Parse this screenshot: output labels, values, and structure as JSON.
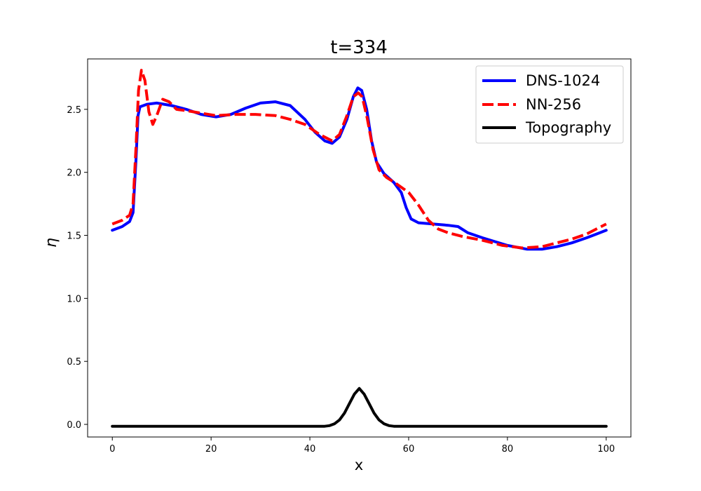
{
  "chart_data": {
    "type": "line",
    "title": "t=334",
    "xlabel": "x",
    "ylabel": "η",
    "xlim": [
      -5,
      105
    ],
    "ylim": [
      -0.1,
      2.9
    ],
    "xticks": [
      0,
      20,
      40,
      60,
      80,
      100
    ],
    "xtick_labels": [
      "0",
      "20",
      "40",
      "60",
      "80",
      "100"
    ],
    "yticks": [
      0.0,
      0.5,
      1.0,
      1.5,
      2.0,
      2.5
    ],
    "ytick_labels": [
      "0.0",
      "0.5",
      "1.0",
      "1.5",
      "2.0",
      "2.5"
    ],
    "grid": false,
    "legend_position": "top-right",
    "series": [
      {
        "name": "DNS-1024",
        "color": "#0000ff",
        "style": "solid",
        "points": [
          [
            0,
            1.54
          ],
          [
            2,
            1.57
          ],
          [
            3.5,
            1.61
          ],
          [
            4.2,
            1.68
          ],
          [
            4.8,
            2.1
          ],
          [
            5.2,
            2.45
          ],
          [
            5.6,
            2.52
          ],
          [
            7,
            2.54
          ],
          [
            9,
            2.55
          ],
          [
            12,
            2.53
          ],
          [
            15,
            2.5
          ],
          [
            18,
            2.46
          ],
          [
            21,
            2.44
          ],
          [
            24,
            2.46
          ],
          [
            27,
            2.51
          ],
          [
            30,
            2.55
          ],
          [
            33,
            2.56
          ],
          [
            36,
            2.53
          ],
          [
            39,
            2.42
          ],
          [
            41,
            2.32
          ],
          [
            43,
            2.25
          ],
          [
            44.5,
            2.23
          ],
          [
            46,
            2.28
          ],
          [
            47.5,
            2.42
          ],
          [
            48.8,
            2.6
          ],
          [
            49.7,
            2.67
          ],
          [
            50.5,
            2.65
          ],
          [
            51.5,
            2.5
          ],
          [
            52.5,
            2.25
          ],
          [
            53.5,
            2.08
          ],
          [
            55,
            1.99
          ],
          [
            57,
            1.92
          ],
          [
            58.5,
            1.84
          ],
          [
            59.5,
            1.72
          ],
          [
            60.5,
            1.63
          ],
          [
            62,
            1.6
          ],
          [
            65,
            1.59
          ],
          [
            68,
            1.58
          ],
          [
            70,
            1.57
          ],
          [
            72,
            1.52
          ],
          [
            75,
            1.48
          ],
          [
            80,
            1.42
          ],
          [
            84,
            1.39
          ],
          [
            87,
            1.39
          ],
          [
            90,
            1.41
          ],
          [
            93,
            1.44
          ],
          [
            96,
            1.48
          ],
          [
            98,
            1.51
          ],
          [
            100,
            1.54
          ]
        ]
      },
      {
        "name": "NN-256",
        "color": "#ff0000",
        "style": "dashed",
        "points": [
          [
            0,
            1.59
          ],
          [
            2,
            1.62
          ],
          [
            3.5,
            1.66
          ],
          [
            4.2,
            1.75
          ],
          [
            4.8,
            2.2
          ],
          [
            5.3,
            2.65
          ],
          [
            5.9,
            2.81
          ],
          [
            6.6,
            2.73
          ],
          [
            7.4,
            2.48
          ],
          [
            8.2,
            2.38
          ],
          [
            9,
            2.45
          ],
          [
            10.2,
            2.58
          ],
          [
            11.5,
            2.56
          ],
          [
            13,
            2.5
          ],
          [
            15,
            2.49
          ],
          [
            18,
            2.47
          ],
          [
            21,
            2.45
          ],
          [
            25,
            2.46
          ],
          [
            29,
            2.46
          ],
          [
            33,
            2.45
          ],
          [
            36,
            2.42
          ],
          [
            39,
            2.38
          ],
          [
            42,
            2.3
          ],
          [
            44.5,
            2.25
          ],
          [
            46,
            2.3
          ],
          [
            47.5,
            2.45
          ],
          [
            48.8,
            2.6
          ],
          [
            49.8,
            2.63
          ],
          [
            50.6,
            2.6
          ],
          [
            51.6,
            2.43
          ],
          [
            52.8,
            2.18
          ],
          [
            54,
            2.02
          ],
          [
            55.5,
            1.96
          ],
          [
            57.5,
            1.91
          ],
          [
            60,
            1.84
          ],
          [
            62,
            1.74
          ],
          [
            64,
            1.62
          ],
          [
            66,
            1.55
          ],
          [
            68,
            1.52
          ],
          [
            71,
            1.49
          ],
          [
            75,
            1.46
          ],
          [
            79,
            1.42
          ],
          [
            83,
            1.4
          ],
          [
            87,
            1.41
          ],
          [
            90,
            1.44
          ],
          [
            93,
            1.47
          ],
          [
            96,
            1.51
          ],
          [
            98,
            1.55
          ],
          [
            100,
            1.59
          ]
        ]
      },
      {
        "name": "Topography",
        "color": "#000000",
        "style": "solid",
        "points": [
          [
            0,
            -0.015
          ],
          [
            43,
            -0.015
          ],
          [
            44,
            -0.01
          ],
          [
            45,
            0.005
          ],
          [
            46,
            0.035
          ],
          [
            47,
            0.09
          ],
          [
            48,
            0.165
          ],
          [
            49,
            0.24
          ],
          [
            50,
            0.285
          ],
          [
            51,
            0.24
          ],
          [
            52,
            0.165
          ],
          [
            53,
            0.09
          ],
          [
            54,
            0.035
          ],
          [
            55,
            0.005
          ],
          [
            56,
            -0.01
          ],
          [
            57,
            -0.015
          ],
          [
            100,
            -0.015
          ]
        ]
      }
    ]
  }
}
